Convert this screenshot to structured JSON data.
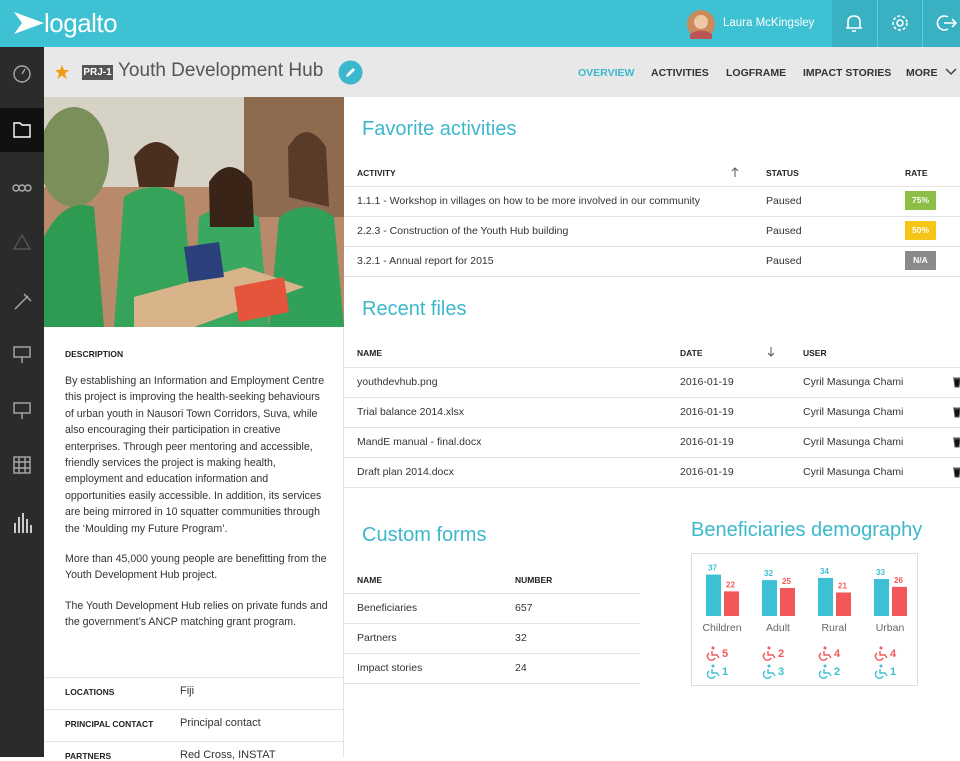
{
  "header": {
    "logo": "logalto",
    "user": "Laura McKingsley"
  },
  "project": {
    "code": "PRJ-1",
    "title": "Youth Development Hub"
  },
  "nav": [
    "OVERVIEW",
    "ACTIVITIES",
    "LOGFRAME",
    "IMPACT STORIES",
    "MORE"
  ],
  "description": {
    "heading": "DESCRIPTION",
    "paragraphs": [
      "By establishing an Information and Employment Centre this project is improving the health-seeking behaviours of urban youth in Nausori Town Corridors, Suva, while also encouraging their participation in creative enterprises. Through peer mentoring and accessible, friendly services the project is making health, employment and education information and opportunities easily accessible. In addition, its services are being mirrored in 10 squatter communities through the ‘Moulding my Future Program’.",
      "More than 45,000 young people are benefitting from the Youth Development Hub project.",
      "The Youth Development Hub relies on private funds and the government’s ANCP matching grant program."
    ]
  },
  "details": [
    {
      "label": "LOCATIONS",
      "value": "Fiji"
    },
    {
      "label": "PRINCIPAL CONTACT",
      "value": "Principal contact"
    },
    {
      "label": "PARTNERS",
      "value": "Red Cross, INSTAT"
    }
  ],
  "favorite_activities": {
    "title": "Favorite activities",
    "columns": [
      "ACTIVITY",
      "STATUS",
      "RATE"
    ],
    "rows": [
      [
        "1.1.1 - Workshop in villages on how to be more involved in our community",
        "Paused",
        "75%"
      ],
      [
        "2.2.3 - Construction of the Youth Hub building",
        "Paused",
        "50%"
      ],
      [
        "3.2.1 - Annual report for 2015",
        "Paused",
        "N/A"
      ]
    ]
  },
  "recent_files": {
    "title": "Recent files",
    "columns": [
      "NAME",
      "DATE",
      "USER"
    ],
    "rows": [
      [
        "youthdevhub.png",
        "2016-01-19",
        "Cyril Masunga Chami"
      ],
      [
        "Trial balance 2014.xlsx",
        "2016-01-19",
        "Cyril Masunga Chami"
      ],
      [
        "MandE manual - final.docx",
        "2016-01-19",
        "Cyril Masunga Chami"
      ],
      [
        "Draft plan 2014.docx",
        "2016-01-19",
        "Cyril Masunga Chami"
      ]
    ]
  },
  "custom_forms": {
    "title": "Custom forms",
    "columns": [
      "NAME",
      "NUMBER"
    ],
    "rows": [
      [
        "Beneficiaries",
        "657"
      ],
      [
        "Partners",
        "32"
      ],
      [
        "Impact stories",
        "24"
      ]
    ]
  },
  "demography": {
    "title": "Beneficiaries demography",
    "colors": [
      "#3dbfd4",
      "#f2585a"
    ],
    "groups": [
      {
        "name": "Children",
        "values": [
          37,
          22
        ],
        "disability": [
          5,
          1
        ]
      },
      {
        "name": "Adult",
        "values": [
          32,
          25
        ],
        "disability": [
          2,
          3
        ]
      },
      {
        "name": "Rural",
        "values": [
          34,
          21
        ],
        "disability": [
          4,
          2
        ]
      },
      {
        "name": "Urban",
        "values": [
          33,
          26
        ],
        "disability": [
          4,
          1
        ]
      }
    ]
  }
}
